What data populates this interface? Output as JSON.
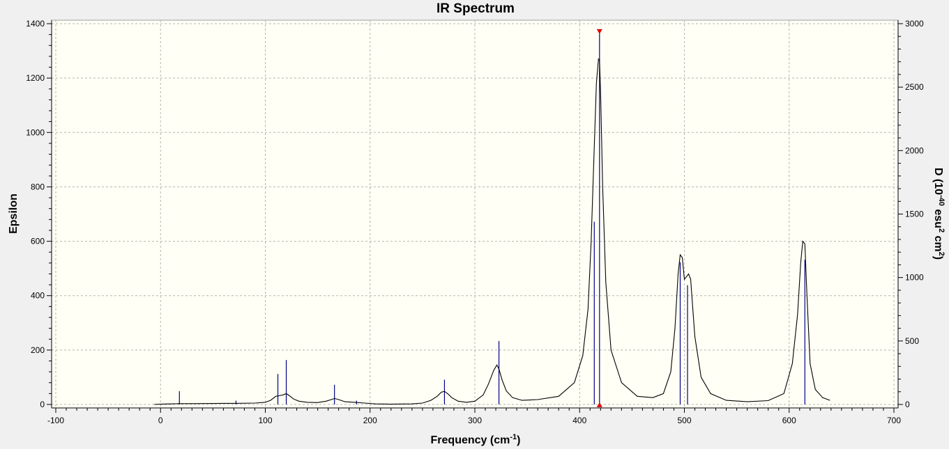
{
  "chart_data": {
    "type": "line",
    "title": "IR Spectrum",
    "xlabel": "Frequency (cm",
    "xlabel_sup": "-1",
    "xlabel_close": ")",
    "ylabel": "Epsilon",
    "y2label_parts": [
      "D (10",
      "-40",
      " esu",
      "2",
      " cm",
      "2",
      ")"
    ],
    "xlim": [
      -100,
      700
    ],
    "ylim": [
      0,
      1400
    ],
    "y2lim": [
      0,
      3000
    ],
    "xticks": [
      -100,
      0,
      100,
      200,
      300,
      400,
      500,
      600,
      700
    ],
    "yticks": [
      0,
      200,
      400,
      600,
      800,
      1000,
      1200,
      1400
    ],
    "y2ticks": [
      0,
      500,
      1000,
      1500,
      2000,
      2500,
      3000
    ],
    "grid": true,
    "series": [
      {
        "kind": "curve",
        "color": "#000000",
        "x": [
          -6,
          0,
          10,
          18,
          30,
          60,
          72,
          90,
          100,
          105,
          110,
          113,
          117,
          120,
          123,
          127,
          132,
          140,
          150,
          158,
          163,
          166,
          170,
          176,
          185,
          195,
          205,
          220,
          240,
          250,
          258,
          264,
          268,
          271,
          274,
          278,
          284,
          292,
          300,
          308,
          313,
          318,
          321,
          323,
          326,
          330,
          336,
          345,
          360,
          380,
          395,
          403,
          408,
          411,
          414,
          416,
          418,
          419,
          420,
          422,
          425,
          430,
          440,
          455,
          470,
          480,
          487,
          491,
          494,
          496,
          498,
          500,
          502,
          504,
          506,
          510,
          516,
          525,
          540,
          560,
          580,
          595,
          603,
          608,
          611,
          613,
          615,
          617,
          620,
          625,
          632,
          639
        ],
        "y": [
          0,
          1,
          2,
          3,
          3,
          4,
          4,
          5,
          8,
          15,
          30,
          32,
          35,
          40,
          32,
          20,
          12,
          8,
          7,
          12,
          18,
          22,
          18,
          10,
          8,
          5,
          2,
          1,
          2,
          5,
          15,
          30,
          45,
          48,
          40,
          25,
          12,
          8,
          12,
          35,
          75,
          125,
          145,
          130,
          90,
          50,
          25,
          15,
          18,
          30,
          80,
          180,
          350,
          600,
          950,
          1180,
          1270,
          1265,
          1150,
          800,
          450,
          200,
          80,
          30,
          25,
          40,
          120,
          280,
          480,
          550,
          540,
          460,
          470,
          480,
          460,
          250,
          100,
          40,
          15,
          10,
          14,
          40,
          150,
          330,
          520,
          600,
          590,
          400,
          150,
          55,
          25,
          15
        ]
      },
      {
        "kind": "sticks",
        "color": "#00008b",
        "x": [
          18,
          72,
          112,
          120,
          166,
          187,
          271,
          323,
          414,
          419,
          496,
          503,
          615
        ],
        "d": [
          105,
          30,
          240,
          350,
          155,
          30,
          195,
          500,
          1440,
          2935,
          1120,
          940,
          1140
        ]
      }
    ],
    "markers": [
      {
        "x": 419,
        "y2": 2935,
        "shape": "triangle-down",
        "color": "#e00000"
      },
      {
        "x": 419,
        "y2": 0,
        "shape": "triangle-up",
        "color": "#e00000"
      }
    ],
    "colors": {
      "background": "#f0f0f0",
      "plot_bg": "#fffff5",
      "grid": "#b4b4b4"
    }
  }
}
